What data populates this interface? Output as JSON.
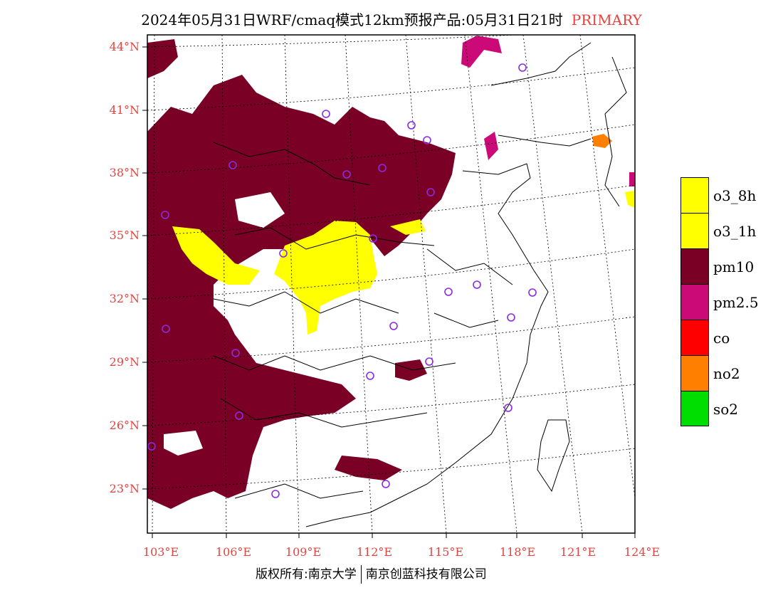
{
  "header": {
    "title": "2024年05月31日WRF/cmaq模式12km预报产品:05月31日21时",
    "primary_label": "PRIMARY"
  },
  "colors": {
    "label_red": "#e8423f",
    "pm10": "#7a0026",
    "pm25": "#cc0a77",
    "o3": "#ffff00",
    "co": "#ff0000",
    "no2": "#ff8000",
    "so2": "#00dd00",
    "city_marker": "#8a2be2"
  },
  "axes": {
    "lat_labels": [
      "44°N",
      "41°N",
      "38°N",
      "35°N",
      "32°N",
      "29°N",
      "26°N",
      "23°N"
    ],
    "lon_labels": [
      "103°E",
      "106°E",
      "109°E",
      "112°E",
      "115°E",
      "118°E",
      "121°E",
      "124°E"
    ]
  },
  "legend": [
    {
      "label": "o3_8h",
      "color": "#ffff00"
    },
    {
      "label": "o3_1h",
      "color": "#ffff00"
    },
    {
      "label": "pm10",
      "color": "#7a0026"
    },
    {
      "label": "pm2.5",
      "color": "#cc0a77"
    },
    {
      "label": "co",
      "color": "#ff0000"
    },
    {
      "label": "no2",
      "color": "#ff8000"
    },
    {
      "label": "so2",
      "color": "#00dd00"
    }
  ],
  "footer": {
    "left": "版权所有:南京大学",
    "right": "南京创蓝科技有限公司"
  }
}
